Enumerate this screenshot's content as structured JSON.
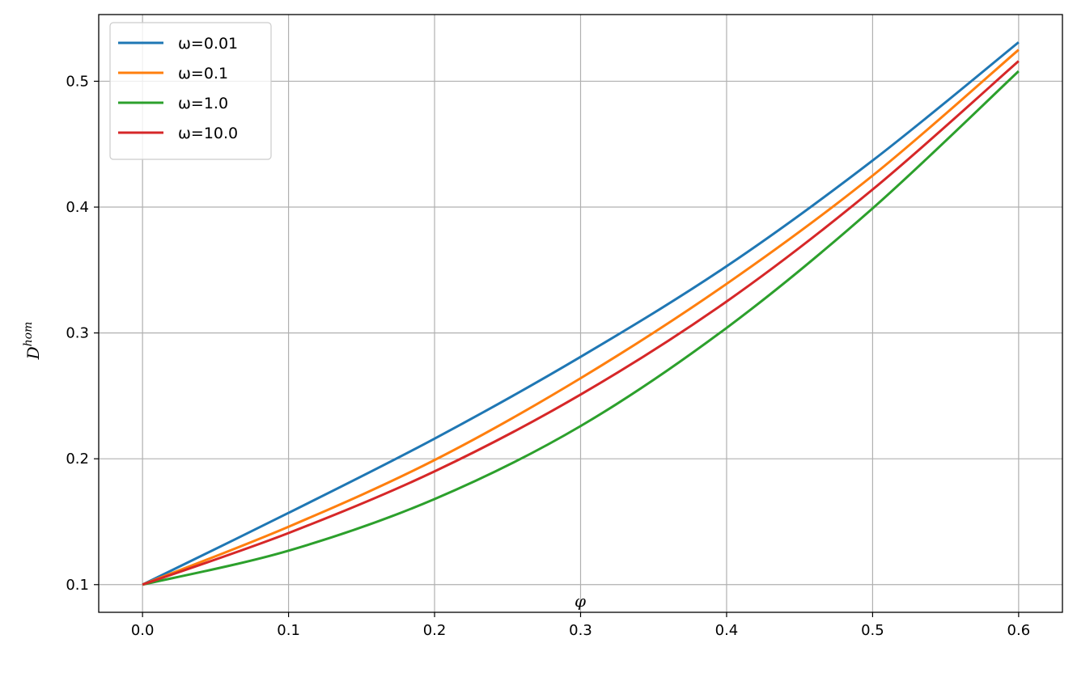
{
  "chart_data": {
    "type": "line",
    "title": "",
    "xlabel": "φ",
    "ylabel": "D",
    "ylabel_superscript": "hom",
    "xlim": [
      -0.03,
      0.63
    ],
    "ylim": [
      0.078,
      0.553
    ],
    "x_ticks": [
      "0.0",
      "0.1",
      "0.2",
      "0.3",
      "0.4",
      "0.5",
      "0.6"
    ],
    "y_ticks": [
      "0.1",
      "0.2",
      "0.3",
      "0.4",
      "0.5"
    ],
    "grid": true,
    "legend_position": "top-left",
    "x": [
      0.0,
      0.1,
      0.2,
      0.3,
      0.4,
      0.5,
      0.6
    ],
    "series": [
      {
        "name": "ω=0.01",
        "color": "#1f77b4",
        "values": [
          0.1,
          0.157,
          0.216,
          0.281,
          0.353,
          0.437,
          0.531
        ]
      },
      {
        "name": "ω=0.1",
        "color": "#ff7f0e",
        "values": [
          0.1,
          0.146,
          0.199,
          0.264,
          0.339,
          0.425,
          0.525
        ]
      },
      {
        "name": "ω=1.0",
        "color": "#2ca02c",
        "values": [
          0.1,
          0.127,
          0.168,
          0.226,
          0.304,
          0.399,
          0.508
        ]
      },
      {
        "name": "ω=10.0",
        "color": "#d62728",
        "values": [
          0.1,
          0.141,
          0.19,
          0.251,
          0.325,
          0.414,
          0.516
        ]
      }
    ]
  }
}
